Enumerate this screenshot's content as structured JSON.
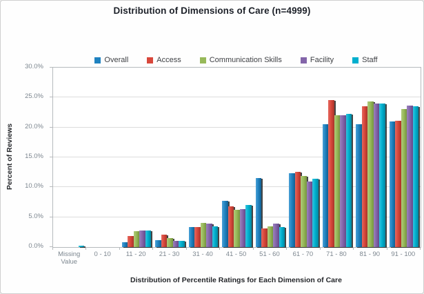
{
  "chart_data": {
    "type": "bar",
    "title": "Distribution of Dimensions of Care (n=4999)",
    "xlabel": "Distribution of Percentile Ratings for Each Dimension of Care",
    "ylabel": "Percent of Reviews",
    "ylim": [
      0,
      30
    ],
    "ytick_step": 5,
    "ytick_suffix": "%",
    "grid": "horizontal",
    "legend_position": "top",
    "categories": [
      "Missing Value",
      "0 - 10",
      "11 - 20",
      "21 - 30",
      "31 - 40",
      "41 - 50",
      "51 - 60",
      "61 - 70",
      "71 - 80",
      "81 - 90",
      "91 - 100"
    ],
    "series": [
      {
        "name": "Overall",
        "color": "#1F82C0",
        "color_light": "#4AA0D6",
        "color_dark": "#135F91",
        "values": [
          0,
          0,
          0.8,
          1.2,
          3.4,
          7.7,
          11.6,
          12.4,
          20.5,
          20.6,
          21.0
        ]
      },
      {
        "name": "Access",
        "color": "#D8473B",
        "color_light": "#E4685E",
        "color_dark": "#A83429",
        "values": [
          0,
          0,
          1.9,
          2.1,
          3.4,
          6.8,
          3.1,
          12.6,
          24.6,
          23.5,
          21.1
        ]
      },
      {
        "name": "Communication Skills",
        "color": "#97B959",
        "color_light": "#B0CA7B",
        "color_dark": "#75943F",
        "values": [
          0,
          0,
          2.7,
          1.5,
          4.0,
          6.2,
          3.5,
          11.9,
          22.0,
          24.3,
          23.1
        ]
      },
      {
        "name": "Facility",
        "color": "#8365A9",
        "color_light": "#9B82BD",
        "color_dark": "#64498A",
        "values": [
          0,
          0,
          2.8,
          1.1,
          3.9,
          6.3,
          3.9,
          11.0,
          22.0,
          24.0,
          23.7
        ]
      },
      {
        "name": "Staff",
        "color": "#00AFCE",
        "color_light": "#33C4DE",
        "color_dark": "#00869F",
        "values": [
          0.2,
          0,
          2.8,
          1.0,
          3.5,
          7.0,
          3.3,
          11.4,
          22.3,
          24.0,
          23.5
        ]
      }
    ]
  }
}
